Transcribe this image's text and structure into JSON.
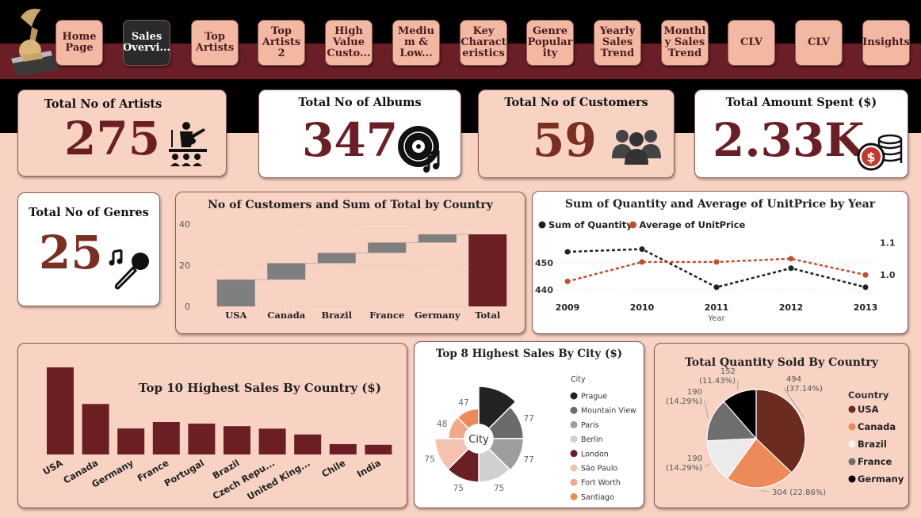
{
  "nav": {
    "items": [
      {
        "label": "Home Page"
      },
      {
        "label": "Sales Overvi..."
      },
      {
        "label": "Top Artists"
      },
      {
        "label": "Top Artists 2"
      },
      {
        "label": "High Value Custo..."
      },
      {
        "label": "Mediu m & Low..."
      },
      {
        "label": "Key Charact eristics"
      },
      {
        "label": "Genre Popular ity"
      },
      {
        "label": "Yearly Sales Trend"
      },
      {
        "label": "Monthl y Sales Trend"
      },
      {
        "label": "CLV"
      },
      {
        "label": "CLV"
      },
      {
        "label": "Insights"
      }
    ],
    "active_index": 1
  },
  "kpis": {
    "artists": {
      "title": "Total No of Artists",
      "value": "275",
      "icon": "performer-on-stage-icon"
    },
    "albums": {
      "title": "Total No of Albums",
      "value": "347",
      "icon": "vinyl-record-icon"
    },
    "customers": {
      "title": "Total No of Customers",
      "value": "59",
      "icon": "people-group-icon"
    },
    "amount": {
      "title": "Total Amount Spent ($)",
      "value": "2.33K",
      "icon": "money-coins-icon"
    },
    "genres": {
      "title": "Total No of Genres",
      "value": "25",
      "icon": "microphone-music-icon"
    }
  },
  "colors": {
    "maroon": "#6b1f24",
    "pink": "#f8d3c4",
    "orange": "#ed8a5a",
    "gray": "#7a7a7a"
  },
  "chart_data": [
    {
      "id": "waterfall",
      "type": "bar",
      "title": "No of Customers and Sum of Total by Country",
      "categories": [
        "USA",
        "Canada",
        "Brazil",
        "France",
        "Germany",
        "Total"
      ],
      "values": [
        13,
        8,
        5,
        5,
        4,
        35
      ],
      "ylim": [
        0,
        40
      ],
      "yticks": [
        "0",
        "20",
        "40"
      ]
    },
    {
      "id": "yearly",
      "type": "line",
      "title": "Sum of Quantity and Average of UnitPrice by Year",
      "x": [
        "2009",
        "2010",
        "2011",
        "2012",
        "2013"
      ],
      "xlabel": "Year",
      "series": [
        {
          "name": "Sum of Quantity",
          "values": [
            454,
            455,
            441,
            448,
            441
          ],
          "color": "#222222"
        },
        {
          "name": "Average of UnitPrice",
          "values": [
            0.98,
            1.04,
            1.04,
            1.05,
            1.0
          ],
          "color": "#c0502c"
        }
      ],
      "y_left_ticks": [
        "440",
        "450"
      ],
      "y_right_ticks": [
        "1.0",
        "1.1"
      ],
      "legend_position": "top-left"
    },
    {
      "id": "top10",
      "type": "bar",
      "title": "Top 10 Highest Sales By Country ($)",
      "categories": [
        "USA",
        "Canada",
        "Germany",
        "France",
        "Portugal",
        "Brazil",
        "Czech Repu...",
        "United King...",
        "Chile",
        "India"
      ],
      "values": [
        523,
        303,
        156,
        195,
        185,
        170,
        155,
        120,
        62,
        58
      ]
    },
    {
      "id": "city",
      "type": "pie",
      "title": "Top 8 Highest Sales By City ($)",
      "center_label": "City",
      "legend_title": "City",
      "categories": [
        "Prague",
        "Mountain View",
        "Paris",
        "Berlin",
        "London",
        "São Paulo",
        "Fort Worth",
        "Santiago"
      ],
      "values": [
        90,
        77,
        77,
        75,
        75,
        75,
        48,
        47
      ],
      "labels": [
        "",
        "77",
        "77",
        "75",
        "75",
        "75",
        "48",
        "47"
      ],
      "colors": [
        "#222222",
        "#6b6b6b",
        "#9e9e9e",
        "#d0d0d0",
        "#6b1f24",
        "#f4c2ae",
        "#f0a98a",
        "#ed8a5a"
      ]
    },
    {
      "id": "qty",
      "type": "pie",
      "title": "Total Quantity Sold By Country",
      "legend_title": "Country",
      "categories": [
        "USA",
        "Canada",
        "Brazil",
        "France",
        "Germany"
      ],
      "values": [
        494,
        304,
        190,
        190,
        152
      ],
      "pct": [
        "(37.14%)",
        "(22.86%)",
        "(14.29%)",
        "(14.29%)",
        "(11.43%)"
      ],
      "colors": [
        "#6b2b1e",
        "#ed8a5a",
        "#ebebeb",
        "#6e6e6e",
        "#000000"
      ]
    }
  ]
}
